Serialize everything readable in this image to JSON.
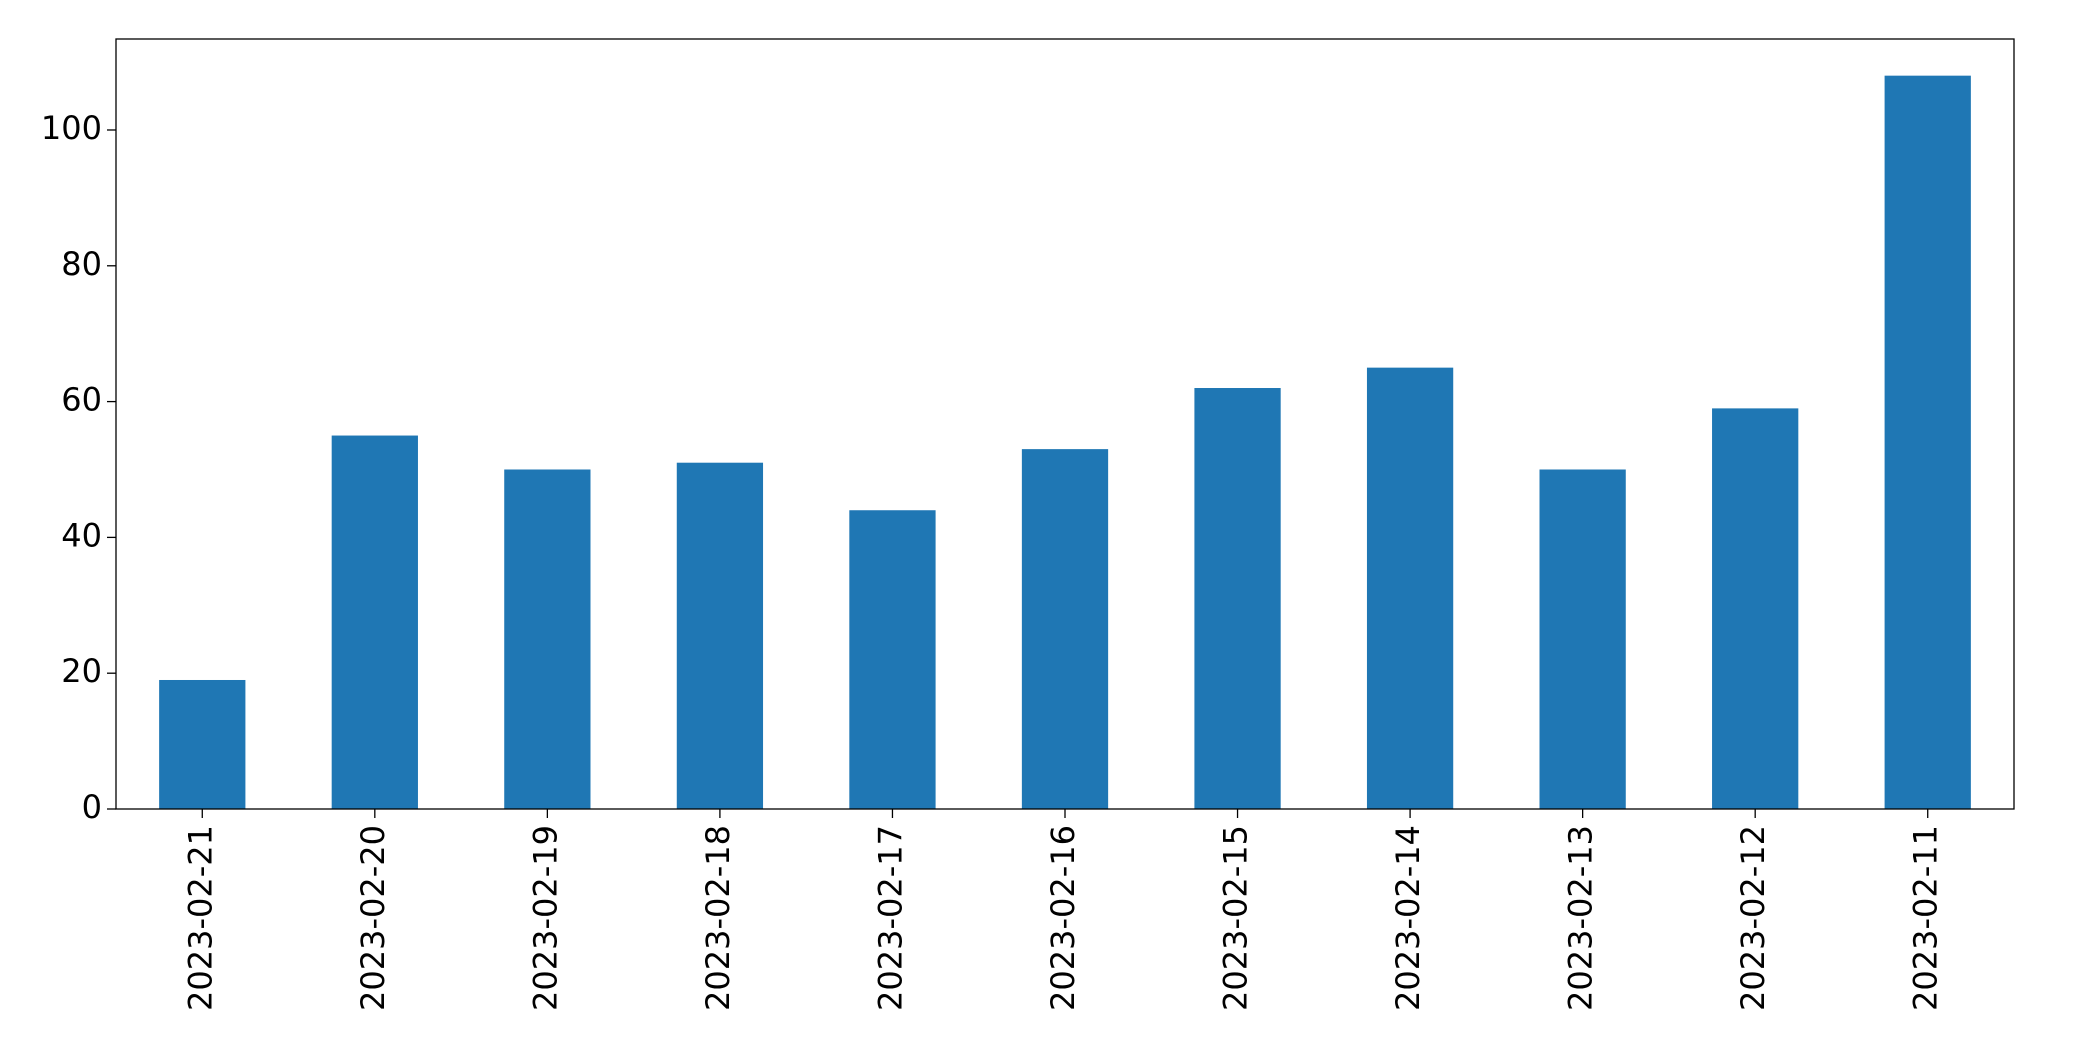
{
  "chart_data": {
    "type": "bar",
    "categories": [
      "2023-02-21",
      "2023-02-20",
      "2023-02-19",
      "2023-02-18",
      "2023-02-17",
      "2023-02-16",
      "2023-02-15",
      "2023-02-14",
      "2023-02-13",
      "2023-02-12",
      "2023-02-11"
    ],
    "values": [
      19,
      55,
      50,
      51,
      44,
      53,
      62,
      65,
      50,
      59,
      108
    ],
    "color": "#1f77b4",
    "ylim": [
      0,
      113.4
    ],
    "yticks": [
      0,
      20,
      40,
      60,
      80,
      100
    ],
    "grid": false
  }
}
